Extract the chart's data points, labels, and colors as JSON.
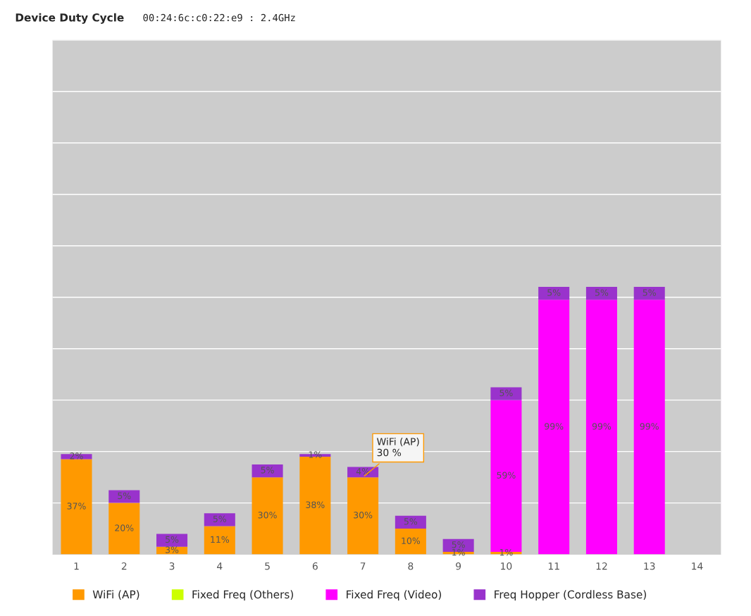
{
  "chart_data": {
    "type": "bar",
    "title": "Device Duty Cycle",
    "subtitle": "00:24:6c:c0:22:e9 : 2.4GHz",
    "categories": [
      "1",
      "2",
      "3",
      "4",
      "5",
      "6",
      "7",
      "8",
      "9",
      "10",
      "11",
      "12",
      "13",
      "14"
    ],
    "stacked": true,
    "series": [
      {
        "name": "WiFi (AP)",
        "color": "#ff9900",
        "values": [
          37,
          20,
          3,
          11,
          30,
          38,
          30,
          10,
          1,
          1,
          null,
          null,
          null,
          null
        ],
        "value_labels": [
          "37%",
          "20%",
          "3%",
          "11%",
          "30%",
          "38%",
          "30%",
          "10%",
          "1%",
          "1%",
          null,
          null,
          null,
          null
        ]
      },
      {
        "name": "Fixed Freq (Others)",
        "color": "#ccff00",
        "values": [
          null,
          null,
          null,
          null,
          null,
          null,
          null,
          null,
          null,
          null,
          null,
          null,
          null,
          null
        ]
      },
      {
        "name": "Fixed Freq (Video)",
        "color": "#ff00ff",
        "values": [
          null,
          null,
          null,
          null,
          null,
          null,
          null,
          null,
          null,
          59,
          99,
          99,
          99,
          null
        ],
        "value_labels": [
          null,
          null,
          null,
          null,
          null,
          null,
          null,
          null,
          null,
          "59%",
          "99%",
          "99%",
          "99%",
          null
        ]
      },
      {
        "name": "Freq Hopper (Cordless Base)",
        "color": "#9933cc",
        "values": [
          2,
          5,
          5,
          5,
          5,
          1,
          4,
          5,
          5,
          5,
          5,
          5,
          5,
          null
        ],
        "value_labels": [
          "2%",
          "5%",
          "5%",
          "5%",
          "5%",
          "1%",
          "4%",
          "5%",
          "5%",
          "5%",
          "5%",
          "5%",
          "5%",
          null
        ]
      }
    ],
    "ylim": [
      0,
      200
    ],
    "yticks": [
      {
        "value": 0,
        "label": null
      },
      {
        "value": 20,
        "label": null
      },
      {
        "value": 40,
        "label": null
      },
      {
        "value": 60,
        "label": null
      },
      {
        "value": 80,
        "label": null
      },
      {
        "value": 100,
        "label": null
      },
      {
        "value": 120,
        "label": null
      },
      {
        "value": 140,
        "label": null
      },
      {
        "value": 160,
        "label": null
      },
      {
        "value": 180,
        "label": null
      },
      {
        "value": 200,
        "label": null
      }
    ],
    "tick_labels": "x",
    "grid": "y",
    "legend": "bottom",
    "annotations": [
      {
        "text": "WiFi (AP)\n30 %",
        "x": "7",
        "y": 30
      }
    ]
  }
}
